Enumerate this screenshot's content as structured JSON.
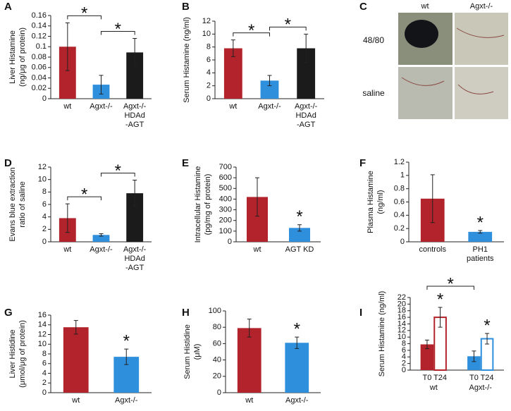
{
  "chart_data": [
    {
      "type": "bar",
      "panel": "A",
      "ylabel": [
        "Liver Histamine",
        "(ng/μg of protein)"
      ],
      "categories": [
        [
          "wt"
        ],
        [
          "Agxt-/-"
        ],
        [
          "Agxt-/-",
          "HDAd",
          "-AGT"
        ]
      ],
      "values": [
        0.1,
        0.027,
        0.089
      ],
      "errors": [
        0.046,
        0.018,
        0.027
      ],
      "colors": [
        "#b3232b",
        "#2e8fdd",
        "#1b1b1b"
      ],
      "ylim": [
        0,
        0.16
      ],
      "yticks": [
        0,
        0.02,
        0.04,
        0.06,
        0.08,
        0.1,
        0.12,
        0.14,
        0.16
      ],
      "brackets": [
        {
          "from": 0,
          "to": 1,
          "label": "*"
        },
        {
          "from": 1,
          "to": 2,
          "label": "*"
        }
      ]
    },
    {
      "type": "bar",
      "panel": "B",
      "ylabel": [
        "Serum Histamine (ng/ml)"
      ],
      "categories": [
        [
          "wt"
        ],
        [
          "Agxt-/-"
        ],
        [
          "Agxt-/-",
          "HDAd",
          "-AGT"
        ]
      ],
      "values": [
        7.8,
        2.8,
        7.8
      ],
      "errors": [
        1.3,
        0.8,
        2.2
      ],
      "colors": [
        "#b3232b",
        "#2e8fdd",
        "#1b1b1b"
      ],
      "ylim": [
        0,
        12
      ],
      "yticks": [
        0,
        2,
        4,
        6,
        8,
        10,
        12
      ],
      "brackets": [
        {
          "from": 0,
          "to": 1,
          "label": "*"
        },
        {
          "from": 1,
          "to": 2,
          "label": "*"
        }
      ]
    },
    {
      "type": "bar",
      "panel": "D",
      "ylabel": [
        "Evans blue extraction",
        "ratio of saline"
      ],
      "categories": [
        [
          "wt"
        ],
        [
          "Agxt-/-"
        ],
        [
          "Agxt-/-",
          "HDAd",
          "-AGT"
        ]
      ],
      "values": [
        3.8,
        1.1,
        7.8
      ],
      "errors": [
        2.3,
        0.2,
        2.1
      ],
      "colors": [
        "#b3232b",
        "#2e8fdd",
        "#1b1b1b"
      ],
      "ylim": [
        0,
        12
      ],
      "yticks": [
        0,
        2,
        4,
        6,
        8,
        10,
        12
      ],
      "brackets": [
        {
          "from": 0,
          "to": 1,
          "label": "*"
        },
        {
          "from": 1,
          "to": 2,
          "label": "*"
        }
      ]
    },
    {
      "type": "bar",
      "panel": "E",
      "ylabel": [
        "Intracellular Histamine",
        "(pg/mg of protein)"
      ],
      "categories": [
        [
          "wt"
        ],
        [
          "AGT KD"
        ]
      ],
      "values": [
        420,
        130
      ],
      "errors": [
        180,
        30
      ],
      "colors": [
        "#b3232b",
        "#2e8fdd"
      ],
      "ylim": [
        0,
        700
      ],
      "yticks": [
        0,
        100,
        200,
        300,
        400,
        500,
        600,
        700
      ],
      "stars": [
        {
          "index": 1,
          "label": "*"
        }
      ]
    },
    {
      "type": "bar",
      "panel": "F",
      "ylabel": [
        "Plasma Histamine",
        "(ng/ml)"
      ],
      "categories": [
        [
          "controls"
        ],
        [
          "PH1",
          "patients"
        ]
      ],
      "values": [
        0.65,
        0.15
      ],
      "errors": [
        0.36,
        0.02
      ],
      "colors": [
        "#b3232b",
        "#2e8fdd"
      ],
      "ylim": [
        0,
        1.2
      ],
      "yticks": [
        0,
        0.2,
        0.4,
        0.6,
        0.8,
        1,
        1.2
      ],
      "stars": [
        {
          "index": 1,
          "label": "*"
        }
      ]
    },
    {
      "type": "bar",
      "panel": "G",
      "ylabel": [
        "Liver Histidine",
        "(μmol/μg of protein)"
      ],
      "categories": [
        [
          "wt"
        ],
        [
          "Agxt-/-"
        ]
      ],
      "values": [
        13.5,
        7.4
      ],
      "errors": [
        1.4,
        1.6
      ],
      "colors": [
        "#b3232b",
        "#2e8fdd"
      ],
      "ylim": [
        0,
        16
      ],
      "yticks": [
        0,
        2,
        4,
        6,
        8,
        10,
        12,
        14,
        16
      ],
      "stars": [
        {
          "index": 1,
          "label": "*"
        }
      ]
    },
    {
      "type": "bar",
      "panel": "H",
      "ylabel": [
        "Serum Histidine",
        "(μM)"
      ],
      "categories": [
        [
          "wt"
        ],
        [
          "Agxt-/-"
        ]
      ],
      "values": [
        79,
        61
      ],
      "errors": [
        11,
        7
      ],
      "colors": [
        "#b3232b",
        "#2e8fdd"
      ],
      "ylim": [
        0,
        100
      ],
      "yticks": [
        0,
        20,
        40,
        60,
        80,
        100
      ],
      "stars": [
        {
          "index": 1,
          "label": "*"
        }
      ]
    },
    {
      "type": "bar",
      "panel": "I",
      "ylabel": [
        "Serum Histamine (ng/ml)"
      ],
      "categories": [
        [
          "T0"
        ],
        [
          "T24"
        ],
        [
          "T0"
        ],
        [
          "T24"
        ]
      ],
      "group_labels": [
        "wt",
        "Agxt-/-"
      ],
      "values": [
        7.8,
        16,
        4.2,
        9.5
      ],
      "errors": [
        1.3,
        3,
        1.6,
        1.6
      ],
      "colors": [
        "#b3232b",
        "#b3232b",
        "#2e8fdd",
        "#2e8fdd"
      ],
      "hollow": [
        false,
        true,
        false,
        true
      ],
      "ylim": [
        0,
        22
      ],
      "yticks": [
        0,
        2,
        4,
        6,
        8,
        10,
        12,
        14,
        16,
        18,
        20,
        22
      ],
      "brackets": [
        {
          "from": 0,
          "to": 2,
          "label": "*"
        }
      ],
      "stars": [
        {
          "index": 1,
          "label": "*"
        },
        {
          "index": 3,
          "label": "*"
        }
      ]
    }
  ],
  "image_panel": {
    "panel": "C",
    "columns": [
      "wt",
      "Agxt-/-"
    ],
    "rows": [
      "48/80",
      "saline"
    ]
  }
}
